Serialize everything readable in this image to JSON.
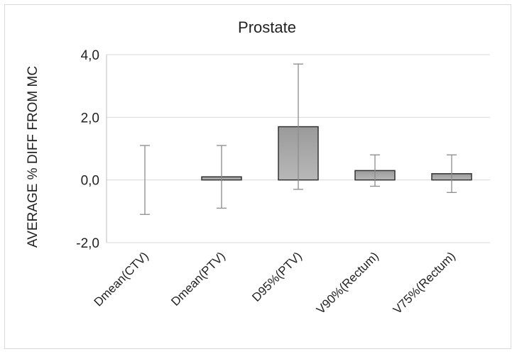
{
  "chart_data": {
    "type": "bar",
    "title": "Prostate",
    "xlabel": "",
    "ylabel": "AVERAGE % DIFF FROM MC",
    "ylim": [
      -2.0,
      4.0
    ],
    "yticks": [
      "4,0",
      "2,0",
      "0,0",
      "-2,0"
    ],
    "ytick_values": [
      4.0,
      2.0,
      0.0,
      -2.0
    ],
    "grid": true,
    "categories": [
      "Dmean(CTV)",
      "Dmean(PTV)",
      "D95%(PTV)",
      "V90%(Rectum)",
      "V75%(Rectum)"
    ],
    "series": [
      {
        "values": [
          0.0,
          0.1,
          1.7,
          0.3,
          0.2
        ],
        "error_low": [
          -1.1,
          -0.9,
          -0.3,
          -0.2,
          -0.4
        ],
        "error_high": [
          1.1,
          1.1,
          3.7,
          0.8,
          0.8
        ]
      }
    ],
    "colors": {
      "bar_fill": "#a6a6a6",
      "bar_edge": "#333333",
      "error_bar": "#8c8c8c",
      "grid": "#d9d9d9",
      "axis": "#bfbfbf"
    }
  }
}
